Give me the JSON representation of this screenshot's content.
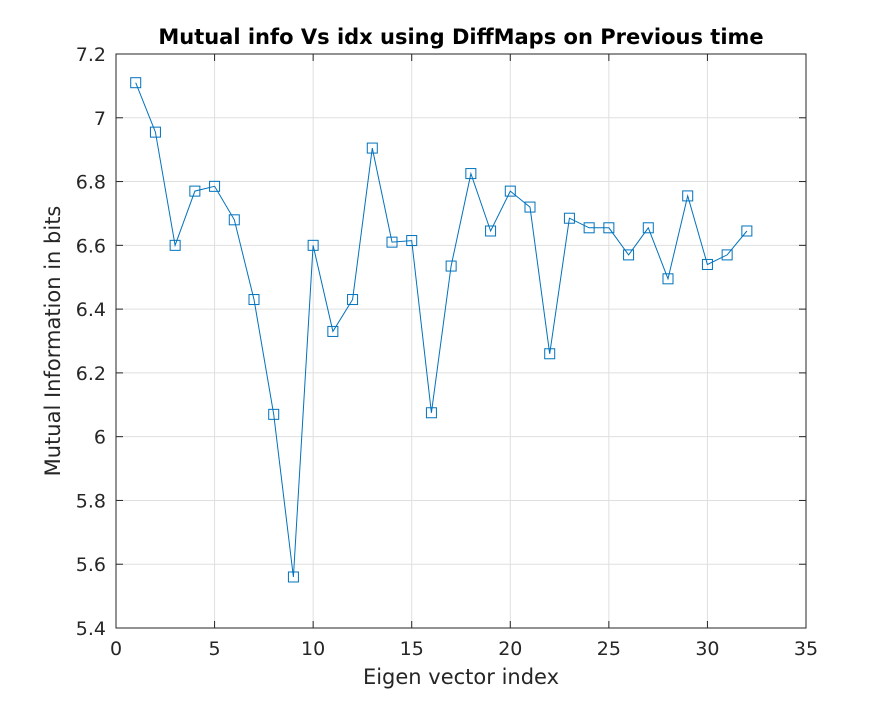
{
  "chart_data": {
    "type": "line",
    "title": "Mutual info Vs idx using DiffMaps on Previous time",
    "xlabel": "Eigen vector index",
    "ylabel": "Mutual Information in bits",
    "xlim": [
      0,
      35
    ],
    "ylim": [
      5.4,
      7.2
    ],
    "xticks": [
      0,
      5,
      10,
      15,
      20,
      25,
      30,
      35
    ],
    "yticks": [
      5.4,
      5.6,
      5.8,
      6,
      6.2,
      6.4,
      6.6,
      6.8,
      7,
      7.2
    ],
    "grid": true,
    "marker": "square",
    "line_color": "#0072bd",
    "series": [
      {
        "x": [
          1,
          2,
          3,
          4,
          5,
          6,
          7,
          8,
          9,
          10,
          11,
          12,
          13,
          14,
          15,
          16,
          17,
          18,
          19,
          20,
          21,
          22,
          23,
          24,
          25,
          26,
          27,
          28,
          29,
          30,
          31,
          32
        ],
        "values": [
          7.11,
          6.955,
          6.6,
          6.77,
          6.785,
          6.68,
          6.43,
          6.07,
          5.56,
          6.6,
          6.33,
          6.43,
          6.905,
          6.61,
          6.615,
          6.075,
          6.535,
          6.825,
          6.645,
          6.77,
          6.72,
          6.26,
          6.685,
          6.655,
          6.655,
          6.57,
          6.655,
          6.495,
          6.755,
          6.54,
          6.57,
          6.645
        ]
      }
    ]
  }
}
